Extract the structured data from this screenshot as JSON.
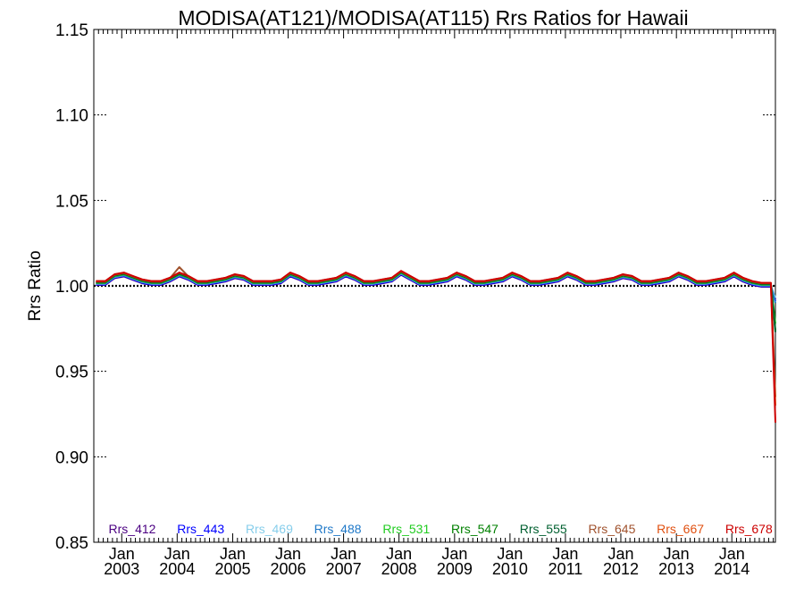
{
  "chart_data": {
    "type": "line",
    "title": "MODISA(AT121)/MODISA(AT115)  Rrs Ratios for Hawaii",
    "ylabel": "Rrs Ratio",
    "xlabel": "",
    "ylim": [
      0.85,
      1.15
    ],
    "yticks": [
      "0.85",
      "0.90",
      "0.95",
      "1.00",
      "1.05",
      "1.10",
      "1.15"
    ],
    "xlim": [
      "2002-07-01",
      "2014-10-15"
    ],
    "xticks": [
      {
        "month": "Jan",
        "year": "2003"
      },
      {
        "month": "Jan",
        "year": "2004"
      },
      {
        "month": "Jan",
        "year": "2005"
      },
      {
        "month": "Jan",
        "year": "2006"
      },
      {
        "month": "Jan",
        "year": "2007"
      },
      {
        "month": "Jan",
        "year": "2008"
      },
      {
        "month": "Jan",
        "year": "2009"
      },
      {
        "month": "Jan",
        "year": "2010"
      },
      {
        "month": "Jan",
        "year": "2011"
      },
      {
        "month": "Jan",
        "year": "2012"
      },
      {
        "month": "Jan",
        "year": "2013"
      },
      {
        "month": "Jan",
        "year": "2014"
      }
    ],
    "reference_line": {
      "y": 1.0,
      "style": "dotted",
      "color": "#000000"
    },
    "x": [
      "2002-07",
      "2002-09",
      "2002-11",
      "2003-01",
      "2003-03",
      "2003-05",
      "2003-07",
      "2003-09",
      "2003-11",
      "2004-01",
      "2004-03",
      "2004-05",
      "2004-07",
      "2004-09",
      "2004-11",
      "2005-01",
      "2005-03",
      "2005-05",
      "2005-07",
      "2005-09",
      "2005-11",
      "2006-01",
      "2006-03",
      "2006-05",
      "2006-07",
      "2006-09",
      "2006-11",
      "2007-01",
      "2007-03",
      "2007-05",
      "2007-07",
      "2007-09",
      "2007-11",
      "2008-01",
      "2008-03",
      "2008-05",
      "2008-07",
      "2008-09",
      "2008-11",
      "2009-01",
      "2009-03",
      "2009-05",
      "2009-07",
      "2009-09",
      "2009-11",
      "2010-01",
      "2010-03",
      "2010-05",
      "2010-07",
      "2010-09",
      "2010-11",
      "2011-01",
      "2011-03",
      "2011-05",
      "2011-07",
      "2011-09",
      "2011-11",
      "2012-01",
      "2012-03",
      "2012-05",
      "2012-07",
      "2012-09",
      "2012-11",
      "2013-01",
      "2013-03",
      "2013-05",
      "2013-07",
      "2013-09",
      "2013-11",
      "2014-01",
      "2014-03",
      "2014-05",
      "2014-07",
      "2014-09",
      "2014-10"
    ],
    "base_values": [
      1.002,
      1.002,
      1.006,
      1.007,
      1.005,
      1.003,
      1.002,
      1.002,
      1.004,
      1.007,
      1.005,
      1.002,
      1.002,
      1.003,
      1.004,
      1.006,
      1.005,
      1.002,
      1.002,
      1.002,
      1.003,
      1.007,
      1.005,
      1.002,
      1.002,
      1.003,
      1.004,
      1.007,
      1.005,
      1.002,
      1.002,
      1.003,
      1.004,
      1.008,
      1.005,
      1.002,
      1.002,
      1.003,
      1.004,
      1.007,
      1.005,
      1.002,
      1.002,
      1.003,
      1.004,
      1.007,
      1.005,
      1.002,
      1.002,
      1.003,
      1.004,
      1.007,
      1.005,
      1.002,
      1.002,
      1.003,
      1.004,
      1.006,
      1.005,
      1.002,
      1.002,
      1.003,
      1.004,
      1.007,
      1.005,
      1.002,
      1.002,
      1.003,
      1.004,
      1.007,
      1.004,
      1.002,
      1.001,
      1.001,
      1.0
    ],
    "series": [
      {
        "name": "Rrs_412",
        "color": "#4b0082",
        "offset": -0.0015,
        "end": 0.992
      },
      {
        "name": "Rrs_443",
        "color": "#0000ff",
        "offset": -0.0012,
        "end": 0.991
      },
      {
        "name": "Rrs_469",
        "color": "#87ceeb",
        "offset": -0.0008,
        "end": 0.993
      },
      {
        "name": "Rrs_488",
        "color": "#1e78c8",
        "offset": -0.0006,
        "end": 0.99
      },
      {
        "name": "Rrs_531",
        "color": "#22cc22",
        "offset": -0.0003,
        "end": 0.978
      },
      {
        "name": "Rrs_547",
        "color": "#008000",
        "offset": 0.0,
        "end": 0.974
      },
      {
        "name": "Rrs_555",
        "color": "#006030",
        "offset": 0.0002,
        "end": 0.973
      },
      {
        "name": "Rrs_645",
        "color": "#a0522d",
        "offset": 0.0005,
        "end": 0.935,
        "spike": {
          "index": 9,
          "value": 1.011
        }
      },
      {
        "name": "Rrs_667",
        "color": "#e05010",
        "offset": 0.0007,
        "end": 0.93
      },
      {
        "name": "Rrs_678",
        "color": "#cc0000",
        "offset": 0.0008,
        "end": 0.92
      }
    ]
  }
}
